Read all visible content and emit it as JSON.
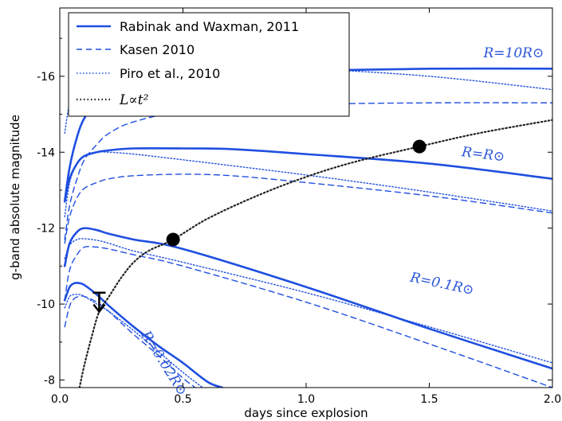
{
  "chart_data": {
    "type": "line",
    "xlabel": "days since explosion",
    "ylabel": "g-band absolute magnitude",
    "xlim": [
      0.0,
      2.0
    ],
    "ylim": [
      -7.8,
      -17.8
    ],
    "y_inverted": true,
    "xticks": [
      "0.0",
      "0.5",
      "1.0",
      "1.5",
      "2.0"
    ],
    "yticks": [
      "-16",
      "-14",
      "-12",
      "-10",
      "-8"
    ],
    "xtick_values": [
      0.0,
      0.5,
      1.0,
      1.5,
      2.0
    ],
    "ytick_values": [
      -16,
      -14,
      -12,
      -10,
      -8
    ],
    "colors": {
      "model": "#1f4fe0",
      "power_law": "#222222",
      "points": "#000000",
      "annotation": "#2a56d6"
    },
    "legend": {
      "placement": "top-left",
      "entries": [
        {
          "label": "Rabinak and Waxman, 2011",
          "style": "solid"
        },
        {
          "label": "Kasen 2010",
          "style": "dashed"
        },
        {
          "label": "Piro et al., 2010",
          "style": "dotted"
        },
        {
          "label": "L∝t²",
          "style": "dotted-black"
        }
      ]
    },
    "annotations": [
      {
        "text": "R=10R⊙",
        "x": 1.72,
        "y": -16.5
      },
      {
        "text": "R=R⊙",
        "x": 1.63,
        "y": -13.9
      },
      {
        "text": "R=0.1R⊙",
        "x": 1.42,
        "y": -10.6
      },
      {
        "text": "R=0.02R⊙",
        "x": 0.33,
        "y": -9.2
      }
    ],
    "series": [
      {
        "group": "R=10R⊙",
        "style": "solid",
        "x": [
          0.02,
          0.04,
          0.07,
          0.1,
          0.15,
          0.2,
          0.3,
          0.5,
          1.0,
          1.5,
          2.0
        ],
        "y": [
          -12.7,
          -13.6,
          -14.4,
          -14.9,
          -15.3,
          -15.6,
          -15.85,
          -16.05,
          -16.15,
          -16.2,
          -16.2
        ]
      },
      {
        "group": "R=10R⊙",
        "style": "dashed",
        "x": [
          0.02,
          0.04,
          0.07,
          0.1,
          0.15,
          0.2,
          0.3,
          0.5,
          1.0,
          1.5,
          2.0
        ],
        "y": [
          -11.7,
          -12.6,
          -13.3,
          -13.8,
          -14.2,
          -14.5,
          -14.8,
          -15.05,
          -15.25,
          -15.3,
          -15.3
        ]
      },
      {
        "group": "R=10R⊙",
        "style": "dotted",
        "x": [
          0.02,
          0.04,
          0.07,
          0.1,
          0.2,
          0.5,
          1.0,
          1.5,
          2.0
        ],
        "y": [
          -14.5,
          -15.3,
          -15.8,
          -16.0,
          -16.2,
          -16.3,
          -16.2,
          -16.0,
          -15.65
        ]
      },
      {
        "group": "R=R⊙",
        "style": "solid",
        "x": [
          0.02,
          0.04,
          0.07,
          0.1,
          0.15,
          0.2,
          0.3,
          0.5,
          0.7,
          1.0,
          1.5,
          2.0
        ],
        "y": [
          -12.7,
          -13.3,
          -13.7,
          -13.9,
          -14.0,
          -14.05,
          -14.1,
          -14.1,
          -14.08,
          -13.95,
          -13.7,
          -13.3
        ]
      },
      {
        "group": "R=R⊙",
        "style": "dashed",
        "x": [
          0.02,
          0.04,
          0.07,
          0.1,
          0.15,
          0.2,
          0.3,
          0.5,
          0.7,
          1.0,
          1.5,
          2.0
        ],
        "y": [
          -11.6,
          -12.3,
          -12.8,
          -13.05,
          -13.2,
          -13.3,
          -13.38,
          -13.42,
          -13.38,
          -13.2,
          -12.85,
          -12.4
        ]
      },
      {
        "group": "R=R⊙",
        "style": "dotted",
        "x": [
          0.02,
          0.04,
          0.07,
          0.1,
          0.15,
          0.2,
          0.3,
          0.5,
          1.0,
          1.5,
          2.0
        ],
        "y": [
          -12.3,
          -13.2,
          -13.7,
          -13.9,
          -14.0,
          -14.0,
          -13.95,
          -13.8,
          -13.4,
          -12.95,
          -12.45
        ]
      },
      {
        "group": "R=0.1R⊙",
        "style": "solid",
        "x": [
          0.02,
          0.04,
          0.07,
          0.1,
          0.15,
          0.2,
          0.3,
          0.5,
          1.0,
          1.5,
          2.0
        ],
        "y": [
          -11.0,
          -11.6,
          -11.9,
          -12.0,
          -11.95,
          -11.85,
          -11.7,
          -11.45,
          -10.45,
          -9.35,
          -8.3
        ]
      },
      {
        "group": "R=0.1R⊙",
        "style": "dashed",
        "x": [
          0.02,
          0.04,
          0.07,
          0.1,
          0.15,
          0.2,
          0.3,
          0.5,
          1.0,
          1.5,
          2.0
        ],
        "y": [
          -10.1,
          -10.9,
          -11.3,
          -11.5,
          -11.5,
          -11.45,
          -11.3,
          -11.0,
          -10.05,
          -8.95,
          -7.8
        ]
      },
      {
        "group": "R=0.1R⊙",
        "style": "dotted",
        "x": [
          0.02,
          0.04,
          0.07,
          0.1,
          0.15,
          0.2,
          0.3,
          0.5,
          1.0,
          1.5,
          2.0
        ],
        "y": [
          -11.2,
          -11.55,
          -11.7,
          -11.72,
          -11.68,
          -11.6,
          -11.4,
          -11.1,
          -10.3,
          -9.4,
          -8.45
        ]
      },
      {
        "group": "R=0.02R⊙",
        "style": "solid",
        "x": [
          0.02,
          0.04,
          0.06,
          0.08,
          0.1,
          0.15,
          0.2,
          0.3,
          0.4,
          0.5,
          0.6,
          0.66
        ],
        "y": [
          -10.1,
          -10.45,
          -10.55,
          -10.55,
          -10.5,
          -10.25,
          -9.95,
          -9.4,
          -8.9,
          -8.45,
          -7.95,
          -7.8
        ]
      },
      {
        "group": "R=0.02R⊙",
        "style": "dashed",
        "x": [
          0.02,
          0.04,
          0.06,
          0.08,
          0.1,
          0.15,
          0.2,
          0.3,
          0.4,
          0.5,
          0.55
        ],
        "y": [
          -9.4,
          -9.95,
          -10.15,
          -10.2,
          -10.2,
          -10.05,
          -9.8,
          -9.2,
          -8.65,
          -8.05,
          -7.8
        ]
      },
      {
        "group": "R=0.02R⊙",
        "style": "dotted",
        "x": [
          0.02,
          0.04,
          0.06,
          0.08,
          0.1,
          0.15,
          0.2,
          0.3,
          0.4,
          0.5,
          0.58
        ],
        "y": [
          -9.9,
          -10.2,
          -10.25,
          -10.25,
          -10.2,
          -10.0,
          -9.8,
          -9.3,
          -8.75,
          -8.2,
          -7.8
        ]
      },
      {
        "group": "L∝t²",
        "style": "dotted-black",
        "x": [
          0.08,
          0.1,
          0.13,
          0.16,
          0.2,
          0.25,
          0.3,
          0.36,
          0.46,
          0.6,
          0.8,
          1.0,
          1.2,
          1.46,
          1.7,
          2.0
        ],
        "y": [
          -7.8,
          -8.4,
          -9.15,
          -9.8,
          -10.2,
          -10.7,
          -11.1,
          -11.4,
          -11.7,
          -12.25,
          -12.85,
          -13.35,
          -13.75,
          -14.15,
          -14.5,
          -14.85
        ]
      }
    ],
    "points": [
      {
        "x": 0.46,
        "y": -11.7
      },
      {
        "x": 1.46,
        "y": -14.15
      }
    ],
    "upper_limit": {
      "x": 0.16,
      "y": -10.3,
      "y_tip": -9.8
    }
  }
}
